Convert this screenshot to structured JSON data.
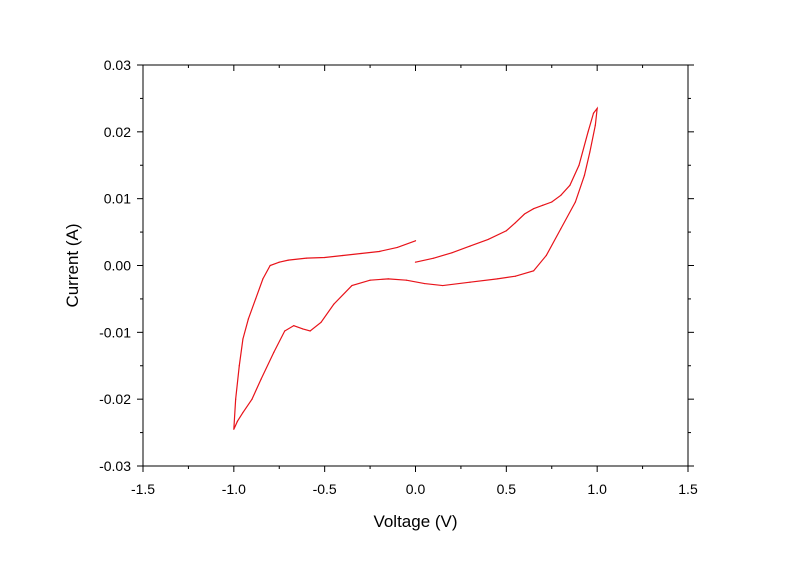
{
  "chart_data": {
    "type": "line",
    "title": "",
    "xlabel": "Voltage (V)",
    "ylabel": "Current (A)",
    "xlim": [
      -1.5,
      1.5
    ],
    "ylim": [
      -0.03,
      0.03
    ],
    "x_ticks": [
      -1.5,
      -1.0,
      -0.5,
      0.0,
      0.5,
      1.0,
      1.5
    ],
    "x_tick_labels": [
      "-1.5",
      "-1.0",
      "-0.5",
      "0.0",
      "0.5",
      "1.0",
      "1.5"
    ],
    "y_ticks": [
      0.03,
      0.02,
      0.01,
      0.0,
      -0.01,
      -0.02,
      -0.03
    ],
    "y_tick_labels": [
      "0.03",
      "0.02",
      "0.01",
      "0.00",
      "-0.01",
      "-0.02",
      "-0.03"
    ],
    "grid": false,
    "series": [
      {
        "color": "#e8131a",
        "points": [
          [
            0.0,
            0.0005
          ],
          [
            0.1,
            0.0011
          ],
          [
            0.2,
            0.0019
          ],
          [
            0.3,
            0.0029
          ],
          [
            0.4,
            0.0039
          ],
          [
            0.5,
            0.0052
          ],
          [
            0.55,
            0.0064
          ],
          [
            0.6,
            0.0077
          ],
          [
            0.65,
            0.0085
          ],
          [
            0.7,
            0.009
          ],
          [
            0.75,
            0.0095
          ],
          [
            0.8,
            0.0105
          ],
          [
            0.85,
            0.012
          ],
          [
            0.9,
            0.015
          ],
          [
            0.95,
            0.02
          ],
          [
            0.98,
            0.0228
          ],
          [
            1.0,
            0.0235
          ],
          [
            0.99,
            0.021
          ],
          [
            0.96,
            0.017
          ],
          [
            0.93,
            0.0135
          ],
          [
            0.88,
            0.0095
          ],
          [
            0.8,
            0.0055
          ],
          [
            0.72,
            0.0015
          ],
          [
            0.65,
            -0.0008
          ],
          [
            0.55,
            -0.0016
          ],
          [
            0.45,
            -0.002
          ],
          [
            0.3,
            -0.0025
          ],
          [
            0.15,
            -0.003
          ],
          [
            0.05,
            -0.0027
          ],
          [
            -0.05,
            -0.0022
          ],
          [
            -0.15,
            -0.002
          ],
          [
            -0.25,
            -0.0022
          ],
          [
            -0.35,
            -0.003
          ],
          [
            -0.45,
            -0.0058
          ],
          [
            -0.52,
            -0.0085
          ],
          [
            -0.58,
            -0.0098
          ],
          [
            -0.62,
            -0.0095
          ],
          [
            -0.67,
            -0.009
          ],
          [
            -0.72,
            -0.0098
          ],
          [
            -0.78,
            -0.013
          ],
          [
            -0.85,
            -0.017
          ],
          [
            -0.9,
            -0.02
          ],
          [
            -0.95,
            -0.022
          ],
          [
            -0.98,
            -0.0233
          ],
          [
            -1.0,
            -0.0245
          ],
          [
            -0.99,
            -0.02
          ],
          [
            -0.97,
            -0.015
          ],
          [
            -0.95,
            -0.011
          ],
          [
            -0.92,
            -0.008
          ],
          [
            -0.88,
            -0.005
          ],
          [
            -0.84,
            -0.002
          ],
          [
            -0.8,
            0.0
          ],
          [
            -0.75,
            0.0005
          ],
          [
            -0.7,
            0.0008
          ],
          [
            -0.6,
            0.0011
          ],
          [
            -0.5,
            0.0012
          ],
          [
            -0.4,
            0.0015
          ],
          [
            -0.3,
            0.0018
          ],
          [
            -0.2,
            0.0021
          ],
          [
            -0.1,
            0.0027
          ],
          [
            0.0,
            0.0037
          ]
        ]
      }
    ]
  }
}
